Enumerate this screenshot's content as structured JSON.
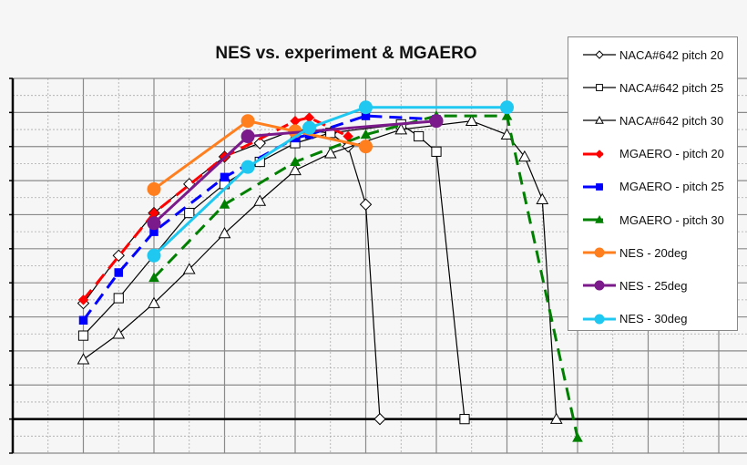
{
  "chart_data": {
    "type": "line",
    "title": "NES vs. experiment & MGAERO",
    "xlim": [
      0,
      10.4
    ],
    "ylim": [
      -1,
      10
    ],
    "grid": true,
    "legend_placement": "right",
    "series": [
      {
        "name": "NACA#642 pitch 20",
        "color": "#000000",
        "style": "solid-thin",
        "marker": "diamond-open",
        "x": [
          1,
          1.5,
          2,
          2.5,
          3,
          3.5,
          4,
          4.5,
          4.75,
          5,
          5.2
        ],
        "y": [
          3.4,
          4.8,
          6.05,
          6.9,
          7.7,
          8.1,
          8.5,
          8.4,
          8.0,
          6.3,
          0
        ]
      },
      {
        "name": "NACA#642 pitch 25",
        "color": "#000000",
        "style": "solid-thin",
        "marker": "square-open",
        "x": [
          1,
          1.5,
          2.5,
          3,
          3.5,
          4,
          4.5,
          5.5,
          5.75,
          6,
          6.4
        ],
        "y": [
          2.45,
          3.55,
          6.05,
          6.9,
          7.55,
          8.1,
          8.4,
          8.65,
          8.3,
          7.85,
          0
        ]
      },
      {
        "name": "NACA#642 pitch 30",
        "color": "#000000",
        "style": "solid-thin",
        "marker": "triangle-open",
        "x": [
          1,
          1.5,
          2,
          2.5,
          3,
          3.5,
          4,
          4.5,
          5.5,
          6.5,
          7,
          7.25,
          7.5,
          7.7
        ],
        "y": [
          1.75,
          2.5,
          3.4,
          4.4,
          5.45,
          6.4,
          7.3,
          7.8,
          8.5,
          8.75,
          8.35,
          7.7,
          6.45,
          0
        ]
      },
      {
        "name": "MGAERO - pitch 20",
        "color": "#ff0000",
        "style": "dashed",
        "marker": "diamond",
        "x": [
          1,
          2,
          3,
          4,
          4.2,
          4.75
        ],
        "y": [
          3.5,
          6.05,
          7.7,
          8.75,
          8.85,
          8.3
        ]
      },
      {
        "name": "MGAERO - pitch 25",
        "color": "#0000ff",
        "style": "dashed",
        "marker": "square",
        "x": [
          1,
          1.5,
          2,
          3,
          4,
          4.2,
          5,
          6
        ],
        "y": [
          2.9,
          4.3,
          5.5,
          7.1,
          8.25,
          8.35,
          8.9,
          8.8
        ]
      },
      {
        "name": "MGAERO - pitch 30",
        "color": "#008000",
        "style": "dashed",
        "marker": "triangle",
        "x": [
          2,
          3,
          4,
          5,
          6,
          7,
          8
        ],
        "y": [
          4.15,
          6.3,
          7.55,
          8.35,
          8.9,
          8.9,
          -0.55
        ]
      },
      {
        "name": "NES - 20deg",
        "color": "#ff7f1e",
        "style": "solid",
        "marker": "circle",
        "x": [
          2,
          3.33,
          4,
          5
        ],
        "y": [
          6.75,
          8.75,
          8.45,
          8.0
        ]
      },
      {
        "name": "NES - 25deg",
        "color": "#7b1a8a",
        "style": "solid",
        "marker": "circle",
        "x": [
          2,
          3.33,
          6
        ],
        "y": [
          5.75,
          8.3,
          8.75
        ]
      },
      {
        "name": "NES - 30deg",
        "color": "#1ec8f0",
        "style": "solid",
        "marker": "circle",
        "x": [
          2,
          3.33,
          4.2,
          5,
          7
        ],
        "y": [
          4.8,
          7.4,
          8.55,
          9.15,
          9.15
        ]
      }
    ]
  }
}
